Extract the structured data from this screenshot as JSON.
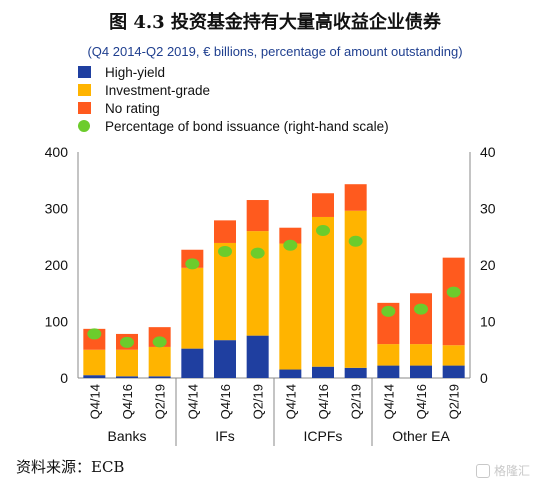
{
  "title": "图 4.3 投资基金持有大量高收益企业债券",
  "subtitle": "(Q4 2014-Q2 2019, € billions, percentage of amount outstanding)",
  "source": "资料来源：ECB",
  "watermark": "格隆汇",
  "legend": [
    {
      "label": "High-yield",
      "color": "#1f3fa0",
      "kind": "bar"
    },
    {
      "label": "Investment-grade",
      "color": "#ffb400",
      "kind": "bar"
    },
    {
      "label": "No rating",
      "color": "#ff5a1e",
      "kind": "bar"
    },
    {
      "label": "Percentage of bond issuance (right-hand scale)",
      "color": "#6ccc2c",
      "kind": "dot"
    }
  ],
  "chart_data": {
    "type": "bar",
    "stacked": true,
    "groups": [
      "Banks",
      "IFs",
      "ICPFs",
      "Other EA"
    ],
    "categories": [
      "Q4/14",
      "Q4/16",
      "Q2/19",
      "Q4/14",
      "Q4/16",
      "Q2/19",
      "Q4/14",
      "Q4/16",
      "Q2/19",
      "Q4/14",
      "Q4/16",
      "Q2/19"
    ],
    "series": [
      {
        "name": "High-yield",
        "color": "#1f3fa0",
        "values": [
          5,
          3,
          3,
          52,
          67,
          75,
          15,
          20,
          18,
          22,
          22,
          22
        ]
      },
      {
        "name": "Investment-grade",
        "color": "#ffb400",
        "values": [
          45,
          47,
          52,
          143,
          172,
          185,
          223,
          265,
          278,
          38,
          38,
          36
        ]
      },
      {
        "name": "No rating",
        "color": "#ff5a1e",
        "values": [
          37,
          28,
          35,
          32,
          40,
          55,
          28,
          42,
          47,
          73,
          90,
          155
        ]
      },
      {
        "name": "Percentage of bond issuance (right-hand scale)",
        "color": "#6ccc2c",
        "axis": "right",
        "values": [
          7.8,
          6.3,
          6.4,
          20.2,
          22.4,
          22.1,
          23.5,
          26.1,
          24.2,
          11.8,
          12.2,
          15.2
        ]
      }
    ],
    "ylim": [
      0,
      400
    ],
    "y_ticks": [
      "0",
      "100",
      "200",
      "300",
      "400"
    ],
    "y2lim": [
      0,
      40
    ],
    "y2_ticks": [
      "0",
      "10",
      "20",
      "30",
      "40"
    ],
    "grid": false,
    "legend_position": "top-left"
  }
}
